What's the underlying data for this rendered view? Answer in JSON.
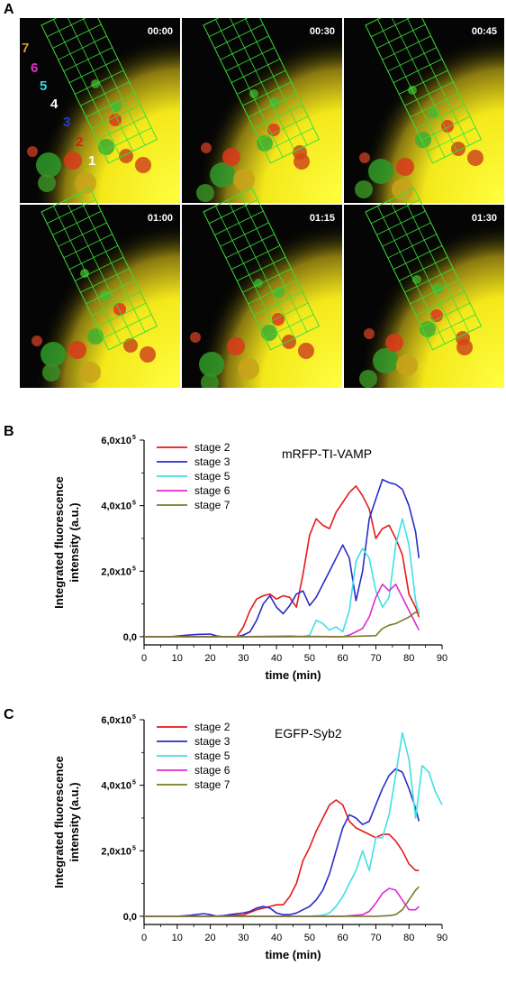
{
  "panel_labels": [
    "A",
    "B",
    "C"
  ],
  "microscopy": {
    "timestamps": [
      "00:00",
      "00:30",
      "00:45",
      "01:00",
      "01:15",
      "01:30"
    ],
    "stage_numbers": [
      {
        "text": "7",
        "color": "#d69a2a"
      },
      {
        "text": "6",
        "color": "#e02bd0"
      },
      {
        "text": "5",
        "color": "#33d6e6"
      },
      {
        "text": "4",
        "color": "#ffffff"
      },
      {
        "text": "3",
        "color": "#2a3ad0"
      },
      {
        "text": "2",
        "color": "#e01a1a"
      },
      {
        "text": "1",
        "color": "#ffffff"
      }
    ]
  },
  "chart_data": [
    {
      "type": "line",
      "title": "mRFP-TI-VAMP",
      "xlabel": "time (min)",
      "ylabel": "Integrated fluorescence intensity (a.u.)",
      "xlim": [
        0,
        90
      ],
      "ylim": [
        -25000,
        600000
      ],
      "x_ticks": [
        "0",
        "10",
        "20",
        "30",
        "40",
        "50",
        "60",
        "70",
        "80",
        "90"
      ],
      "y_ticks": [
        {
          "value": 0,
          "label": "0,0"
        },
        {
          "value": 200000,
          "label": "2,0x10",
          "exp": "5"
        },
        {
          "value": 400000,
          "label": "4,0x10",
          "exp": "5"
        },
        {
          "value": 600000,
          "label": "6,0x10",
          "exp": "5"
        }
      ],
      "legend_position": "top-left",
      "series": [
        {
          "name": "stage 2",
          "color": "#e41a1c",
          "x": [
            0,
            28,
            30,
            32,
            34,
            36,
            38,
            40,
            42,
            44,
            46,
            48,
            50,
            52,
            54,
            56,
            58,
            60,
            62,
            64,
            66,
            68,
            70,
            72,
            74,
            76,
            78,
            80,
            82,
            83
          ],
          "y": [
            0,
            0,
            30000,
            80000,
            115000,
            125000,
            130000,
            115000,
            125000,
            120000,
            90000,
            190000,
            310000,
            360000,
            340000,
            330000,
            380000,
            410000,
            440000,
            460000,
            430000,
            390000,
            300000,
            330000,
            340000,
            300000,
            250000,
            130000,
            90000,
            60000
          ]
        },
        {
          "name": "stage 3",
          "color": "#2b2bc8",
          "x": [
            0,
            8,
            12,
            16,
            20,
            22,
            24,
            28,
            30,
            32,
            34,
            36,
            38,
            40,
            42,
            44,
            46,
            48,
            50,
            52,
            54,
            56,
            58,
            60,
            62,
            64,
            66,
            68,
            70,
            72,
            74,
            76,
            78,
            80,
            82,
            83
          ],
          "y": [
            0,
            0,
            4000,
            7000,
            8000,
            2000,
            0,
            0,
            5000,
            15000,
            50000,
            100000,
            125000,
            90000,
            70000,
            95000,
            130000,
            140000,
            95000,
            120000,
            160000,
            200000,
            240000,
            280000,
            240000,
            110000,
            200000,
            360000,
            420000,
            480000,
            470000,
            465000,
            450000,
            400000,
            320000,
            240000
          ]
        },
        {
          "name": "stage 5",
          "color": "#3fe0e6",
          "x": [
            0,
            30,
            40,
            44,
            48,
            50,
            52,
            54,
            56,
            58,
            60,
            62,
            64,
            66,
            68,
            70,
            72,
            74,
            76,
            78,
            80,
            82,
            83
          ],
          "y": [
            0,
            0,
            2000,
            3000,
            0,
            5000,
            50000,
            40000,
            20000,
            30000,
            15000,
            80000,
            230000,
            270000,
            240000,
            140000,
            90000,
            120000,
            280000,
            360000,
            280000,
            110000,
            70000
          ]
        },
        {
          "name": "stage 6",
          "color": "#e02bd0",
          "x": [
            0,
            40,
            50,
            60,
            62,
            64,
            66,
            68,
            70,
            72,
            74,
            76,
            78,
            80,
            82,
            83
          ],
          "y": [
            0,
            0,
            1000,
            0,
            5000,
            15000,
            25000,
            60000,
            120000,
            160000,
            140000,
            160000,
            120000,
            80000,
            40000,
            20000
          ]
        },
        {
          "name": "stage 7",
          "color": "#7a7a26",
          "x": [
            0,
            40,
            50,
            60,
            70,
            72,
            74,
            76,
            78,
            80,
            82,
            83
          ],
          "y": [
            0,
            0,
            0,
            0,
            3000,
            25000,
            35000,
            40000,
            50000,
            60000,
            75000,
            70000
          ]
        }
      ]
    },
    {
      "type": "line",
      "title": "EGFP-Syb2",
      "xlabel": "time (min)",
      "ylabel": "Integrated fluorescence intensity (a.u.)",
      "xlim": [
        0,
        90
      ],
      "ylim": [
        -25000,
        600000
      ],
      "x_ticks": [
        "0",
        "10",
        "20",
        "30",
        "40",
        "50",
        "60",
        "70",
        "80",
        "90"
      ],
      "y_ticks": [
        {
          "value": 0,
          "label": "0,0"
        },
        {
          "value": 200000,
          "label": "2,0x10",
          "exp": "5"
        },
        {
          "value": 400000,
          "label": "4,0x10",
          "exp": "5"
        },
        {
          "value": 600000,
          "label": "6,0x10",
          "exp": "5"
        }
      ],
      "legend_position": "top-left",
      "series": [
        {
          "name": "stage 2",
          "color": "#e41a1c",
          "x": [
            0,
            10,
            20,
            30,
            34,
            36,
            38,
            40,
            42,
            44,
            46,
            48,
            50,
            52,
            54,
            56,
            58,
            60,
            62,
            64,
            66,
            68,
            70,
            72,
            74,
            76,
            78,
            80,
            82,
            83
          ],
          "y": [
            0,
            0,
            0,
            4000,
            20000,
            25000,
            30000,
            35000,
            35000,
            60000,
            100000,
            170000,
            210000,
            260000,
            300000,
            340000,
            355000,
            340000,
            290000,
            270000,
            260000,
            250000,
            240000,
            250000,
            250000,
            230000,
            200000,
            160000,
            140000,
            140000
          ]
        },
        {
          "name": "stage 3",
          "color": "#2b2bc8",
          "x": [
            0,
            10,
            14,
            18,
            20,
            22,
            24,
            26,
            28,
            30,
            32,
            34,
            36,
            38,
            40,
            42,
            44,
            46,
            48,
            50,
            52,
            54,
            56,
            58,
            60,
            62,
            64,
            66,
            68,
            70,
            72,
            74,
            76,
            78,
            80,
            82,
            83
          ],
          "y": [
            0,
            0,
            3000,
            8000,
            5000,
            0,
            2000,
            5000,
            8000,
            10000,
            15000,
            25000,
            30000,
            25000,
            10000,
            5000,
            5000,
            10000,
            20000,
            30000,
            50000,
            80000,
            130000,
            200000,
            270000,
            310000,
            300000,
            280000,
            290000,
            340000,
            390000,
            430000,
            450000,
            440000,
            390000,
            330000,
            290000
          ]
        },
        {
          "name": "stage 5",
          "color": "#3fe0e6",
          "x": [
            0,
            40,
            50,
            54,
            56,
            58,
            60,
            62,
            64,
            66,
            68,
            70,
            72,
            74,
            76,
            78,
            80,
            82,
            84,
            86,
            88,
            90
          ],
          "y": [
            0,
            0,
            0,
            3000,
            10000,
            30000,
            60000,
            100000,
            140000,
            200000,
            140000,
            240000,
            240000,
            310000,
            430000,
            560000,
            480000,
            300000,
            460000,
            440000,
            380000,
            340000
          ]
        },
        {
          "name": "stage 6",
          "color": "#e02bd0",
          "x": [
            0,
            50,
            60,
            66,
            68,
            70,
            72,
            74,
            76,
            78,
            80,
            82,
            83
          ],
          "y": [
            0,
            0,
            0,
            5000,
            15000,
            40000,
            70000,
            85000,
            80000,
            50000,
            20000,
            20000,
            30000
          ]
        },
        {
          "name": "stage 7",
          "color": "#7a7a26",
          "x": [
            0,
            50,
            70,
            74,
            76,
            78,
            80,
            82,
            83
          ],
          "y": [
            0,
            0,
            0,
            2000,
            5000,
            20000,
            50000,
            80000,
            90000
          ]
        }
      ]
    }
  ]
}
